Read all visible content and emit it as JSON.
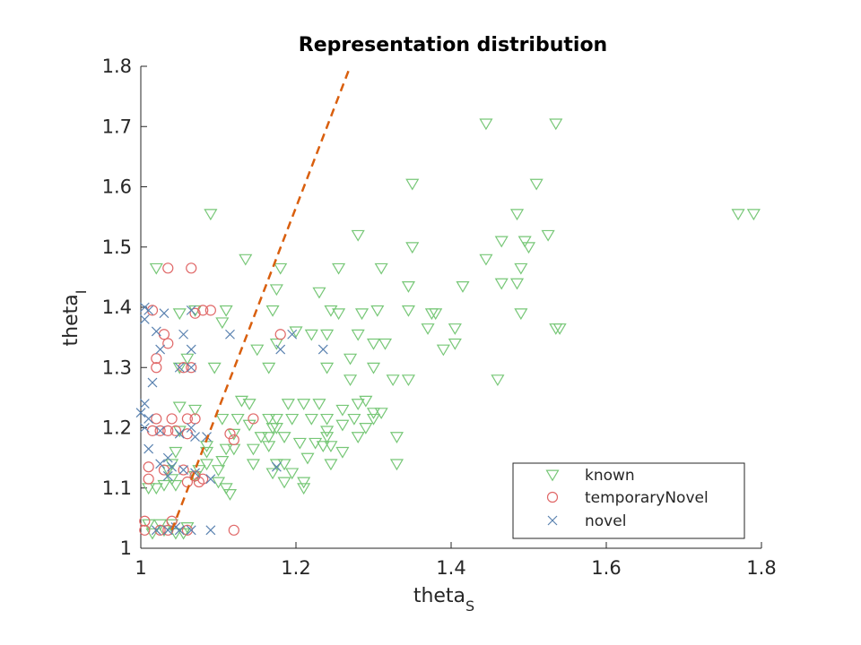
{
  "chart_data": {
    "type": "scatter",
    "title": "Representation distribution",
    "xlabel": {
      "base": "theta",
      "sub": "S"
    },
    "ylabel": {
      "base": "theta",
      "sub": "I"
    },
    "xlim": [
      1,
      1.8
    ],
    "ylim": [
      1,
      1.8
    ],
    "xticks": [
      "1",
      "1.2",
      "1.4",
      "1.6",
      "1.8"
    ],
    "yticks": [
      "1",
      "1.1",
      "1.2",
      "1.3",
      "1.4",
      "1.5",
      "1.6",
      "1.7",
      "1.8"
    ],
    "grid": false,
    "legend_position": "bottom-right",
    "colors": {
      "known": "#77c777",
      "temporaryNovel": "#e06767",
      "novel": "#5a82b0",
      "line": "#d95f0e",
      "axis": "#262626"
    },
    "series": [
      {
        "name": "known",
        "marker": "triangle-down",
        "points": [
          [
            1.445,
            1.705
          ],
          [
            1.535,
            1.705
          ],
          [
            1.35,
            1.605
          ],
          [
            1.51,
            1.605
          ],
          [
            1.09,
            1.555
          ],
          [
            1.485,
            1.555
          ],
          [
            1.77,
            1.555
          ],
          [
            1.79,
            1.555
          ],
          [
            1.28,
            1.52
          ],
          [
            1.525,
            1.52
          ],
          [
            1.465,
            1.51
          ],
          [
            1.495,
            1.51
          ],
          [
            1.35,
            1.5
          ],
          [
            1.5,
            1.5
          ],
          [
            1.02,
            1.465
          ],
          [
            1.18,
            1.465
          ],
          [
            1.255,
            1.465
          ],
          [
            1.31,
            1.465
          ],
          [
            1.49,
            1.465
          ],
          [
            1.135,
            1.48
          ],
          [
            1.445,
            1.48
          ],
          [
            1.345,
            1.435
          ],
          [
            1.415,
            1.435
          ],
          [
            1.465,
            1.44
          ],
          [
            1.485,
            1.44
          ],
          [
            1.175,
            1.43
          ],
          [
            1.23,
            1.425
          ],
          [
            1.05,
            1.39
          ],
          [
            1.07,
            1.395
          ],
          [
            1.11,
            1.395
          ],
          [
            1.17,
            1.395
          ],
          [
            1.245,
            1.395
          ],
          [
            1.255,
            1.39
          ],
          [
            1.285,
            1.39
          ],
          [
            1.305,
            1.395
          ],
          [
            1.345,
            1.395
          ],
          [
            1.375,
            1.39
          ],
          [
            1.38,
            1.39
          ],
          [
            1.49,
            1.39
          ],
          [
            1.105,
            1.375
          ],
          [
            1.2,
            1.36
          ],
          [
            1.22,
            1.355
          ],
          [
            1.24,
            1.355
          ],
          [
            1.28,
            1.355
          ],
          [
            1.37,
            1.365
          ],
          [
            1.405,
            1.365
          ],
          [
            1.535,
            1.365
          ],
          [
            1.54,
            1.365
          ],
          [
            1.175,
            1.34
          ],
          [
            1.3,
            1.34
          ],
          [
            1.315,
            1.34
          ],
          [
            1.405,
            1.34
          ],
          [
            1.15,
            1.33
          ],
          [
            1.39,
            1.33
          ],
          [
            1.06,
            1.315
          ],
          [
            1.27,
            1.315
          ],
          [
            1.05,
            1.3
          ],
          [
            1.095,
            1.3
          ],
          [
            1.165,
            1.3
          ],
          [
            1.24,
            1.3
          ],
          [
            1.3,
            1.3
          ],
          [
            1.27,
            1.28
          ],
          [
            1.325,
            1.28
          ],
          [
            1.345,
            1.28
          ],
          [
            1.46,
            1.28
          ],
          [
            1.13,
            1.245
          ],
          [
            1.14,
            1.24
          ],
          [
            1.19,
            1.24
          ],
          [
            1.21,
            1.24
          ],
          [
            1.23,
            1.24
          ],
          [
            1.28,
            1.24
          ],
          [
            1.29,
            1.245
          ],
          [
            1.05,
            1.235
          ],
          [
            1.07,
            1.23
          ],
          [
            1.26,
            1.23
          ],
          [
            1.3,
            1.225
          ],
          [
            1.31,
            1.225
          ],
          [
            1.105,
            1.215
          ],
          [
            1.125,
            1.215
          ],
          [
            1.165,
            1.215
          ],
          [
            1.175,
            1.215
          ],
          [
            1.195,
            1.215
          ],
          [
            1.22,
            1.215
          ],
          [
            1.24,
            1.215
          ],
          [
            1.275,
            1.215
          ],
          [
            1.3,
            1.215
          ],
          [
            1.14,
            1.205
          ],
          [
            1.17,
            1.2
          ],
          [
            1.175,
            1.2
          ],
          [
            1.26,
            1.205
          ],
          [
            1.29,
            1.2
          ],
          [
            1.05,
            1.195
          ],
          [
            1.12,
            1.19
          ],
          [
            1.155,
            1.185
          ],
          [
            1.165,
            1.185
          ],
          [
            1.185,
            1.185
          ],
          [
            1.24,
            1.195
          ],
          [
            1.24,
            1.185
          ],
          [
            1.28,
            1.185
          ],
          [
            1.33,
            1.185
          ],
          [
            1.085,
            1.17
          ],
          [
            1.12,
            1.165
          ],
          [
            1.145,
            1.165
          ],
          [
            1.165,
            1.17
          ],
          [
            1.205,
            1.175
          ],
          [
            1.225,
            1.175
          ],
          [
            1.235,
            1.17
          ],
          [
            1.245,
            1.17
          ],
          [
            1.045,
            1.16
          ],
          [
            1.085,
            1.16
          ],
          [
            1.11,
            1.165
          ],
          [
            1.215,
            1.15
          ],
          [
            1.26,
            1.16
          ],
          [
            1.04,
            1.14
          ],
          [
            1.085,
            1.14
          ],
          [
            1.105,
            1.145
          ],
          [
            1.145,
            1.14
          ],
          [
            1.175,
            1.14
          ],
          [
            1.185,
            1.14
          ],
          [
            1.245,
            1.14
          ],
          [
            1.33,
            1.14
          ],
          [
            1.035,
            1.13
          ],
          [
            1.075,
            1.13
          ],
          [
            1.1,
            1.13
          ],
          [
            1.17,
            1.125
          ],
          [
            1.195,
            1.125
          ],
          [
            1.04,
            1.115
          ],
          [
            1.07,
            1.12
          ],
          [
            1.1,
            1.11
          ],
          [
            1.185,
            1.11
          ],
          [
            1.21,
            1.11
          ],
          [
            1.01,
            1.1
          ],
          [
            1.02,
            1.1
          ],
          [
            1.03,
            1.105
          ],
          [
            1.045,
            1.105
          ],
          [
            1.11,
            1.1
          ],
          [
            1.21,
            1.1
          ],
          [
            1.115,
            1.09
          ],
          [
            1.01,
            1.04
          ],
          [
            1.025,
            1.04
          ],
          [
            1.03,
            1.03
          ],
          [
            1.04,
            1.04
          ],
          [
            1.06,
            1.035
          ],
          [
            1.015,
            1.025
          ],
          [
            1.045,
            1.025
          ],
          [
            1.055,
            1.025
          ]
        ]
      },
      {
        "name": "temporaryNovel",
        "marker": "circle",
        "points": [
          [
            1.035,
            1.465
          ],
          [
            1.065,
            1.465
          ],
          [
            1.015,
            1.395
          ],
          [
            1.07,
            1.39
          ],
          [
            1.08,
            1.395
          ],
          [
            1.09,
            1.395
          ],
          [
            1.03,
            1.355
          ],
          [
            1.035,
            1.34
          ],
          [
            1.18,
            1.355
          ],
          [
            1.02,
            1.315
          ],
          [
            1.02,
            1.3
          ],
          [
            1.055,
            1.3
          ],
          [
            1.065,
            1.3
          ],
          [
            1.02,
            1.215
          ],
          [
            1.04,
            1.215
          ],
          [
            1.06,
            1.215
          ],
          [
            1.07,
            1.215
          ],
          [
            1.145,
            1.215
          ],
          [
            1.015,
            1.195
          ],
          [
            1.025,
            1.195
          ],
          [
            1.035,
            1.195
          ],
          [
            1.045,
            1.195
          ],
          [
            1.06,
            1.19
          ],
          [
            1.115,
            1.19
          ],
          [
            1.12,
            1.18
          ],
          [
            1.01,
            1.135
          ],
          [
            1.03,
            1.13
          ],
          [
            1.055,
            1.13
          ],
          [
            1.07,
            1.12
          ],
          [
            1.08,
            1.115
          ],
          [
            1.01,
            1.115
          ],
          [
            1.06,
            1.11
          ],
          [
            1.075,
            1.11
          ],
          [
            1.005,
            1.045
          ],
          [
            1.04,
            1.045
          ],
          [
            1.005,
            1.03
          ],
          [
            1.025,
            1.03
          ],
          [
            1.035,
            1.03
          ],
          [
            1.06,
            1.03
          ],
          [
            1.12,
            1.03
          ]
        ]
      },
      {
        "name": "novel",
        "marker": "x",
        "points": [
          [
            1.005,
            1.4
          ],
          [
            1.01,
            1.395
          ],
          [
            1.03,
            1.39
          ],
          [
            1.065,
            1.395
          ],
          [
            1.005,
            1.38
          ],
          [
            1.02,
            1.36
          ],
          [
            1.055,
            1.355
          ],
          [
            1.115,
            1.355
          ],
          [
            1.195,
            1.355
          ],
          [
            1.025,
            1.33
          ],
          [
            1.065,
            1.33
          ],
          [
            1.18,
            1.33
          ],
          [
            1.235,
            1.33
          ],
          [
            1.05,
            1.3
          ],
          [
            1.065,
            1.3
          ],
          [
            1.015,
            1.275
          ],
          [
            1.005,
            1.24
          ],
          [
            1.0,
            1.225
          ],
          [
            1.01,
            1.215
          ],
          [
            1.005,
            1.2
          ],
          [
            1.025,
            1.195
          ],
          [
            1.05,
            1.19
          ],
          [
            1.065,
            1.2
          ],
          [
            1.07,
            1.185
          ],
          [
            1.085,
            1.185
          ],
          [
            1.01,
            1.165
          ],
          [
            1.035,
            1.15
          ],
          [
            1.025,
            1.14
          ],
          [
            1.04,
            1.135
          ],
          [
            1.055,
            1.13
          ],
          [
            1.07,
            1.125
          ],
          [
            1.09,
            1.115
          ],
          [
            1.035,
            1.12
          ],
          [
            1.175,
            1.135
          ],
          [
            1.045,
            1.035
          ],
          [
            1.02,
            1.03
          ],
          [
            1.035,
            1.03
          ],
          [
            1.05,
            1.03
          ],
          [
            1.065,
            1.03
          ],
          [
            1.09,
            1.03
          ]
        ]
      }
    ],
    "annotations": [
      {
        "name": "boundary-line",
        "style": "dashed",
        "points": [
          [
            1.04,
            1.03
          ],
          [
            1.27,
            1.8
          ]
        ]
      }
    ]
  }
}
